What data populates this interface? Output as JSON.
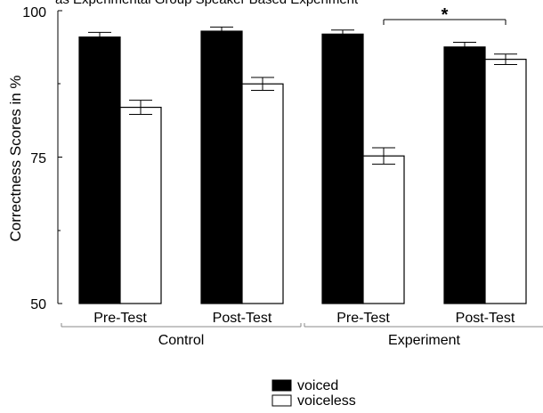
{
  "header_text": "as Experimental Group Speaker Based Experiment",
  "chart_data": {
    "type": "bar",
    "ylabel": "Correctness Scores in %",
    "ylim": [
      50,
      100
    ],
    "yticks": [
      "50",
      "75",
      "100"
    ],
    "categories": [
      "Pre-Test",
      "Post-Test",
      "Pre-Test",
      "Post-Test"
    ],
    "groups": [
      {
        "label": "Control",
        "span": [
          0,
          1
        ]
      },
      {
        "label": "Experiment",
        "span": [
          2,
          3
        ]
      }
    ],
    "series": [
      {
        "name": "voiced",
        "color": "#000000",
        "values": [
          95.5,
          96.5,
          96.0,
          93.8
        ],
        "errors": [
          0.8,
          0.7,
          0.7,
          0.8
        ]
      },
      {
        "name": "voiceless",
        "color": "#ffffff",
        "values": [
          83.5,
          87.5,
          75.2,
          91.7
        ],
        "errors": [
          1.2,
          1.1,
          1.4,
          0.9
        ]
      }
    ],
    "annotation": {
      "text": "*",
      "from_category": 2,
      "to_category": 3
    },
    "legend_position": "bottom-center"
  }
}
